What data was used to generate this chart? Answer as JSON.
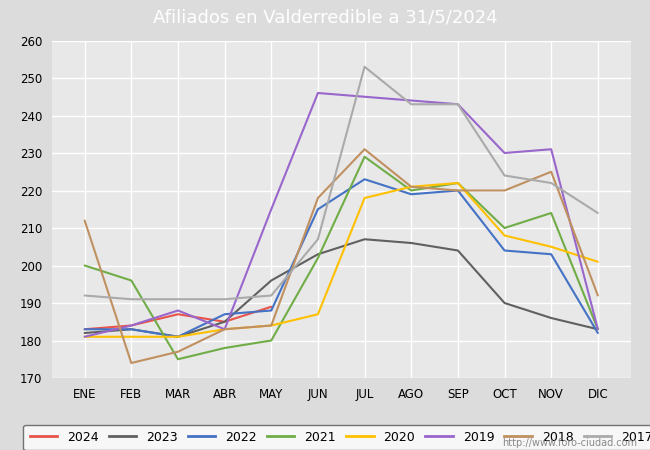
{
  "title": "Afiliados en Valderredible a 31/5/2024",
  "title_color": "#ffffff",
  "title_bg_color": "#5b9bd5",
  "xlabel": "",
  "ylabel": "",
  "ylim": [
    170,
    260
  ],
  "yticks": [
    170,
    180,
    190,
    200,
    210,
    220,
    230,
    240,
    250,
    260
  ],
  "months": [
    "ENE",
    "FEB",
    "MAR",
    "ABR",
    "MAY",
    "JUN",
    "JUL",
    "AGO",
    "SEP",
    "OCT",
    "NOV",
    "DIC"
  ],
  "series": {
    "2024": {
      "color": "#e8534a",
      "data": [
        183,
        184,
        187,
        185,
        189,
        null,
        null,
        null,
        null,
        null,
        null,
        null
      ]
    },
    "2023": {
      "color": "#606060",
      "data": [
        182,
        183,
        181,
        185,
        196,
        203,
        207,
        206,
        204,
        190,
        186,
        183
      ]
    },
    "2022": {
      "color": "#4472c4",
      "data": [
        183,
        183,
        181,
        187,
        188,
        215,
        223,
        219,
        220,
        204,
        203,
        182
      ]
    },
    "2021": {
      "color": "#70ad47",
      "data": [
        200,
        196,
        175,
        178,
        180,
        202,
        229,
        220,
        222,
        210,
        214,
        183
      ]
    },
    "2020": {
      "color": "#ffc000",
      "data": [
        181,
        181,
        181,
        183,
        184,
        187,
        218,
        221,
        222,
        208,
        205,
        201
      ]
    },
    "2019": {
      "color": "#9966cc",
      "data": [
        181,
        184,
        188,
        183,
        215,
        246,
        245,
        244,
        243,
        230,
        231,
        183
      ]
    },
    "2018": {
      "color": "#c09060",
      "data": [
        212,
        174,
        177,
        183,
        184,
        218,
        231,
        221,
        220,
        220,
        225,
        192
      ]
    },
    "2017": {
      "color": "#aaaaaa",
      "data": [
        192,
        191,
        191,
        191,
        192,
        207,
        253,
        243,
        243,
        224,
        222,
        214
      ]
    }
  },
  "outer_bg_color": "#dcdcdc",
  "plot_bg_color": "#e8e8e8",
  "grid_color": "#ffffff",
  "watermark": "http://www.foro-ciudad.com"
}
